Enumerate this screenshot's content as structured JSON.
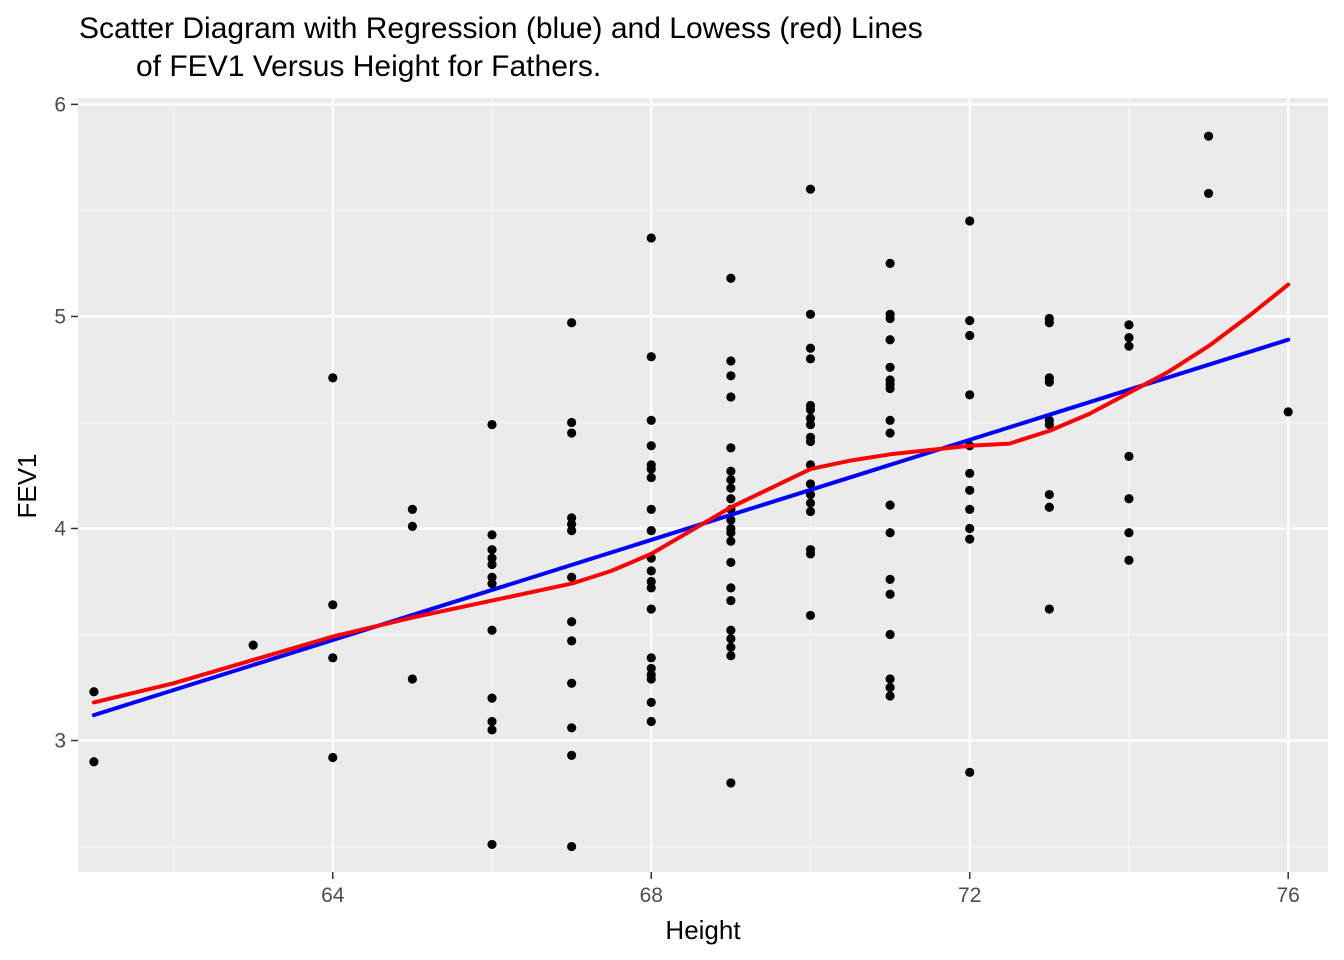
{
  "chart_data": {
    "type": "scatter",
    "title_lines": [
      "Scatter Diagram with Regression (blue) and Lowess (red) Lines",
      "of FEV1 Versus Height for Fathers."
    ],
    "xlabel": "Height",
    "ylabel": "FEV1",
    "xlim": [
      60.8,
      76.5
    ],
    "ylim": [
      2.38,
      6.03
    ],
    "x_ticks": [
      64,
      68,
      72,
      76
    ],
    "x_tick_labels": [
      "64",
      "68",
      "72",
      "76"
    ],
    "y_ticks": [
      3,
      4,
      5,
      6
    ],
    "y_tick_labels": [
      "3",
      "4",
      "5",
      "6"
    ],
    "x_minor_ticks": [
      62,
      66,
      70,
      74
    ],
    "y_minor_ticks": [
      2.5,
      3.5,
      4.5,
      5.5
    ],
    "grid": true,
    "background": "#ebebeb",
    "point_color": "#000000",
    "points": [
      [
        61,
        3.23
      ],
      [
        61,
        2.9
      ],
      [
        63,
        3.45
      ],
      [
        64,
        4.71
      ],
      [
        64,
        3.64
      ],
      [
        64,
        3.39
      ],
      [
        64,
        2.92
      ],
      [
        65,
        4.09
      ],
      [
        65,
        4.01
      ],
      [
        65,
        3.29
      ],
      [
        66,
        4.49
      ],
      [
        66,
        3.97
      ],
      [
        66,
        3.9
      ],
      [
        66,
        3.86
      ],
      [
        66,
        3.83
      ],
      [
        66,
        3.77
      ],
      [
        66,
        3.74
      ],
      [
        66,
        3.52
      ],
      [
        66,
        3.2
      ],
      [
        66,
        3.09
      ],
      [
        66,
        3.05
      ],
      [
        66,
        2.51
      ],
      [
        67,
        4.97
      ],
      [
        67,
        4.5
      ],
      [
        67,
        4.45
      ],
      [
        67,
        4.05
      ],
      [
        67,
        4.02
      ],
      [
        67,
        3.99
      ],
      [
        67,
        3.77
      ],
      [
        67,
        3.56
      ],
      [
        67,
        3.47
      ],
      [
        67,
        3.27
      ],
      [
        67,
        3.06
      ],
      [
        67,
        2.93
      ],
      [
        67,
        2.5
      ],
      [
        68,
        5.37
      ],
      [
        68,
        4.81
      ],
      [
        68,
        4.51
      ],
      [
        68,
        4.39
      ],
      [
        68,
        4.3
      ],
      [
        68,
        4.28
      ],
      [
        68,
        4.24
      ],
      [
        68,
        4.09
      ],
      [
        68,
        3.99
      ],
      [
        68,
        3.86
      ],
      [
        68,
        3.8
      ],
      [
        68,
        3.75
      ],
      [
        68,
        3.72
      ],
      [
        68,
        3.62
      ],
      [
        68,
        3.39
      ],
      [
        68,
        3.34
      ],
      [
        68,
        3.31
      ],
      [
        68,
        3.29
      ],
      [
        68,
        3.18
      ],
      [
        68,
        3.09
      ],
      [
        69,
        5.18
      ],
      [
        69,
        4.79
      ],
      [
        69,
        4.72
      ],
      [
        69,
        4.62
      ],
      [
        69,
        4.38
      ],
      [
        69,
        4.27
      ],
      [
        69,
        4.23
      ],
      [
        69,
        4.19
      ],
      [
        69,
        4.14
      ],
      [
        69,
        4.09
      ],
      [
        69,
        4.04
      ],
      [
        69,
        4.0
      ],
      [
        69,
        3.98
      ],
      [
        69,
        3.94
      ],
      [
        69,
        3.84
      ],
      [
        69,
        3.72
      ],
      [
        69,
        3.66
      ],
      [
        69,
        3.52
      ],
      [
        69,
        3.48
      ],
      [
        69,
        3.44
      ],
      [
        69,
        3.4
      ],
      [
        69,
        2.8
      ],
      [
        70,
        5.6
      ],
      [
        70,
        5.01
      ],
      [
        70,
        4.85
      ],
      [
        70,
        4.8
      ],
      [
        70,
        4.58
      ],
      [
        70,
        4.56
      ],
      [
        70,
        4.52
      ],
      [
        70,
        4.49
      ],
      [
        70,
        4.43
      ],
      [
        70,
        4.41
      ],
      [
        70,
        4.3
      ],
      [
        70,
        4.21
      ],
      [
        70,
        4.16
      ],
      [
        70,
        4.12
      ],
      [
        70,
        4.08
      ],
      [
        70,
        3.9
      ],
      [
        70,
        3.88
      ],
      [
        70,
        3.59
      ],
      [
        71,
        5.25
      ],
      [
        71,
        5.01
      ],
      [
        71,
        4.99
      ],
      [
        71,
        4.89
      ],
      [
        71,
        4.76
      ],
      [
        71,
        4.7
      ],
      [
        71,
        4.68
      ],
      [
        71,
        4.66
      ],
      [
        71,
        4.51
      ],
      [
        71,
        4.45
      ],
      [
        71,
        4.11
      ],
      [
        71,
        3.98
      ],
      [
        71,
        3.76
      ],
      [
        71,
        3.69
      ],
      [
        71,
        3.5
      ],
      [
        71,
        3.29
      ],
      [
        71,
        3.25
      ],
      [
        71,
        3.21
      ],
      [
        72,
        5.45
      ],
      [
        72,
        4.98
      ],
      [
        72,
        4.91
      ],
      [
        72,
        4.63
      ],
      [
        72,
        4.39
      ],
      [
        72,
        4.26
      ],
      [
        72,
        4.18
      ],
      [
        72,
        4.09
      ],
      [
        72,
        4.0
      ],
      [
        72,
        3.95
      ],
      [
        72,
        2.85
      ],
      [
        73,
        4.99
      ],
      [
        73,
        4.97
      ],
      [
        73,
        4.71
      ],
      [
        73,
        4.69
      ],
      [
        73,
        4.51
      ],
      [
        73,
        4.49
      ],
      [
        73,
        4.16
      ],
      [
        73,
        4.1
      ],
      [
        73,
        3.62
      ],
      [
        74,
        4.96
      ],
      [
        74,
        4.9
      ],
      [
        74,
        4.86
      ],
      [
        74,
        4.34
      ],
      [
        74,
        4.14
      ],
      [
        74,
        3.98
      ],
      [
        74,
        3.85
      ],
      [
        75,
        5.85
      ],
      [
        75,
        5.58
      ],
      [
        76,
        4.55
      ]
    ],
    "regression_line": {
      "color": "#0000ff",
      "points": [
        [
          61,
          3.12
        ],
        [
          76,
          4.89
        ]
      ]
    },
    "lowess_line": {
      "color": "#ff0000",
      "points": [
        [
          61,
          3.18
        ],
        [
          62,
          3.27
        ],
        [
          63,
          3.38
        ],
        [
          64,
          3.49
        ],
        [
          65,
          3.58
        ],
        [
          66,
          3.66
        ],
        [
          67,
          3.74
        ],
        [
          67.5,
          3.8
        ],
        [
          68,
          3.88
        ],
        [
          68.5,
          3.99
        ],
        [
          69,
          4.1
        ],
        [
          69.5,
          4.19
        ],
        [
          70,
          4.28
        ],
        [
          70.5,
          4.32
        ],
        [
          71,
          4.35
        ],
        [
          71.5,
          4.37
        ],
        [
          72,
          4.39
        ],
        [
          72.5,
          4.4
        ],
        [
          73,
          4.46
        ],
        [
          73.5,
          4.54
        ],
        [
          74,
          4.64
        ],
        [
          74.5,
          4.74
        ],
        [
          75,
          4.86
        ],
        [
          75.5,
          5.0
        ],
        [
          76,
          5.15
        ]
      ]
    }
  }
}
